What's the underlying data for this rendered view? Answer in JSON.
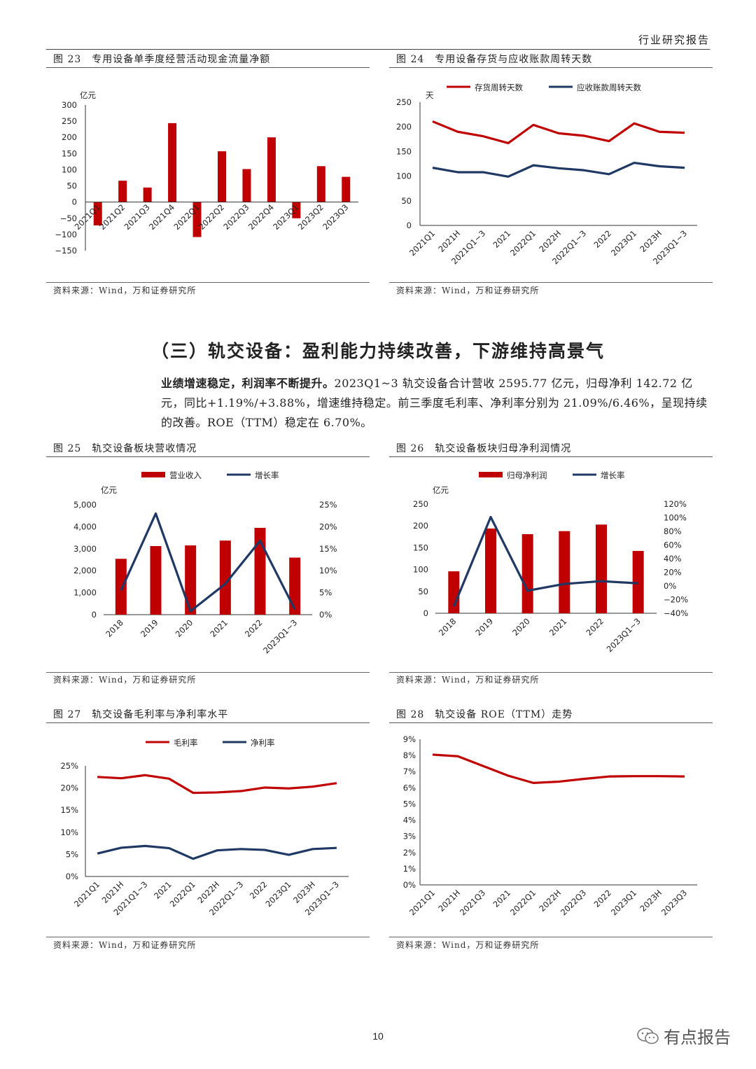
{
  "header": {
    "title": "行业研究报告"
  },
  "page_number": "10",
  "watermark": {
    "text": "有点报告"
  },
  "section": {
    "heading": "（三）轨交设备：盈利能力持续改善，下游维持高景气",
    "para_bold": "业绩增速稳定，利润率不断提升。",
    "para_text": "2023Q1~3 轨交设备合计营收 2595.77 亿元，归母净利 142.72 亿元，同比+1.19%/+3.88%，增速维持稳定。前三季度毛利率、净利率分别为 21.09%/6.46%，呈现持续的改善。ROE（TTM）稳定在 6.70%。"
  },
  "colors": {
    "red": "#C00000",
    "navy": "#1F3864"
  },
  "figures": [
    {
      "id": "fig23",
      "title": "图 23　专用设备单季度经营活动现金流量净额",
      "source": "资料来源：Wind，万和证券研究所"
    },
    {
      "id": "fig24",
      "title": "图 24　专用设备存货与应收账款周转天数",
      "source": "资料来源：Wind，万和证券研究所"
    },
    {
      "id": "fig25",
      "title": "图 25　轨交设备板块营收情况",
      "source": "资料来源：Wind，万和证券研究所"
    },
    {
      "id": "fig26",
      "title": "图 26　轨交设备板块归母净利润情况",
      "source": "资料来源：Wind，万和证券研究所"
    },
    {
      "id": "fig27",
      "title": "图 27　轨交设备毛利率与净利率水平",
      "source": "资料来源：Wind，万和证券研究所"
    },
    {
      "id": "fig28",
      "title": "图 28　轨交设备 ROE（TTM）走势",
      "source": "资料来源：Wind，万和证券研究所"
    }
  ],
  "chart_data": [
    {
      "id": "fig23",
      "type": "bar",
      "ylabel": "亿元",
      "categories": [
        "2021Q1",
        "2021Q2",
        "2021Q3",
        "2021Q4",
        "2022Q1",
        "2022Q2",
        "2022Q3",
        "2022Q4",
        "2023Q1",
        "2023Q2",
        "2023Q3"
      ],
      "values": [
        -72,
        66,
        45,
        244,
        -108,
        157,
        102,
        200,
        -50,
        111,
        78
      ],
      "ylim": [
        -150,
        300
      ],
      "yticks": [
        "300",
        "250",
        "200",
        "150",
        "100",
        "50",
        "0",
        "−50",
        "−100",
        "−150"
      ],
      "color": "#C00000"
    },
    {
      "id": "fig24",
      "type": "line",
      "ylabel": "天",
      "categories": [
        "2021Q1",
        "2021H",
        "2021Q1~3",
        "2021",
        "2022Q1",
        "2022H",
        "2022Q1~3",
        "2022",
        "2023Q1",
        "2023H",
        "2023Q1~3"
      ],
      "series": [
        {
          "name": "存货周转天数",
          "color": "#C00000",
          "values": [
            211,
            190,
            181,
            167,
            204,
            187,
            182,
            171,
            207,
            190,
            188
          ]
        },
        {
          "name": "应收账款周转天数",
          "color": "#1F3864",
          "values": [
            117,
            108,
            108,
            99,
            122,
            116,
            112,
            104,
            127,
            120,
            117
          ]
        }
      ],
      "ylim": [
        0,
        250
      ],
      "yticks": [
        "250",
        "200",
        "150",
        "100",
        "50",
        "0"
      ]
    },
    {
      "id": "fig25",
      "type": "bar",
      "ylabel": "亿元",
      "categories": [
        "2018",
        "2019",
        "2020",
        "2021",
        "2022",
        "2023Q1~3"
      ],
      "series": [
        {
          "name": "营业收入",
          "kind": "bar",
          "color": "#C00000",
          "values": [
            2540,
            3120,
            3150,
            3370,
            3950,
            2596
          ]
        },
        {
          "name": "增长率",
          "kind": "line",
          "color": "#1F3864",
          "values": [
            5.5,
            23,
            0.8,
            7,
            16.8,
            1.2
          ]
        }
      ],
      "ylim": [
        0,
        5000
      ],
      "yticks": [
        "5,000",
        "4,000",
        "3,000",
        "2,000",
        "1,000",
        "0"
      ],
      "y2lim": [
        0,
        25
      ],
      "y2ticks": [
        "25%",
        "20%",
        "15%",
        "10%",
        "5%",
        "0%"
      ]
    },
    {
      "id": "fig26",
      "type": "bar",
      "ylabel": "亿元",
      "categories": [
        "2018",
        "2019",
        "2020",
        "2021",
        "2022",
        "2023Q1~3"
      ],
      "series": [
        {
          "name": "归母净利润",
          "kind": "bar",
          "color": "#C00000",
          "values": [
            96,
            194,
            181,
            188,
            203,
            142.72
          ]
        },
        {
          "name": "增长率",
          "kind": "line",
          "color": "#1F3864",
          "values": [
            -30,
            101,
            -7,
            3,
            7,
            3.88
          ]
        }
      ],
      "ylim": [
        0,
        250
      ],
      "yticks": [
        "250",
        "200",
        "150",
        "100",
        "50",
        "0"
      ],
      "y2lim": [
        -40,
        120
      ],
      "y2ticks": [
        "120%",
        "100%",
        "80%",
        "60%",
        "40%",
        "20%",
        "0%",
        "−20%",
        "−40%"
      ]
    },
    {
      "id": "fig27",
      "type": "line",
      "categories": [
        "2021Q1",
        "2021H",
        "2021Q1~3",
        "2021",
        "2022Q1",
        "2022H",
        "2022Q1~3",
        "2022",
        "2023Q1",
        "2023H",
        "2023Q1~3"
      ],
      "series": [
        {
          "name": "毛利率",
          "color": "#C00000",
          "values": [
            22.5,
            22.2,
            22.9,
            22.1,
            18.9,
            19.0,
            19.3,
            20.1,
            19.9,
            20.3,
            21.09
          ]
        },
        {
          "name": "净利率",
          "color": "#1F3864",
          "values": [
            5.2,
            6.5,
            6.9,
            6.4,
            4.0,
            5.9,
            6.2,
            6.0,
            4.9,
            6.2,
            6.46
          ]
        }
      ],
      "ylim": [
        0,
        25
      ],
      "yticks": [
        "25%",
        "20%",
        "15%",
        "10%",
        "5%",
        "0%"
      ]
    },
    {
      "id": "fig28",
      "type": "line",
      "categories": [
        "2021Q1",
        "2021H",
        "2021Q3",
        "2021",
        "2022Q1",
        "2022H",
        "2022Q3",
        "2022",
        "2023Q1",
        "2023H",
        "2023Q3"
      ],
      "series": [
        {
          "name": "ROE（TTM）",
          "color": "#C00000",
          "values": [
            8.05,
            7.95,
            7.35,
            6.75,
            6.3,
            6.38,
            6.55,
            6.7,
            6.72,
            6.72,
            6.7
          ]
        }
      ],
      "ylim": [
        0,
        9
      ],
      "yticks": [
        "9%",
        "8%",
        "7%",
        "6%",
        "5%",
        "4%",
        "3%",
        "2%",
        "1%",
        "0%"
      ]
    }
  ]
}
